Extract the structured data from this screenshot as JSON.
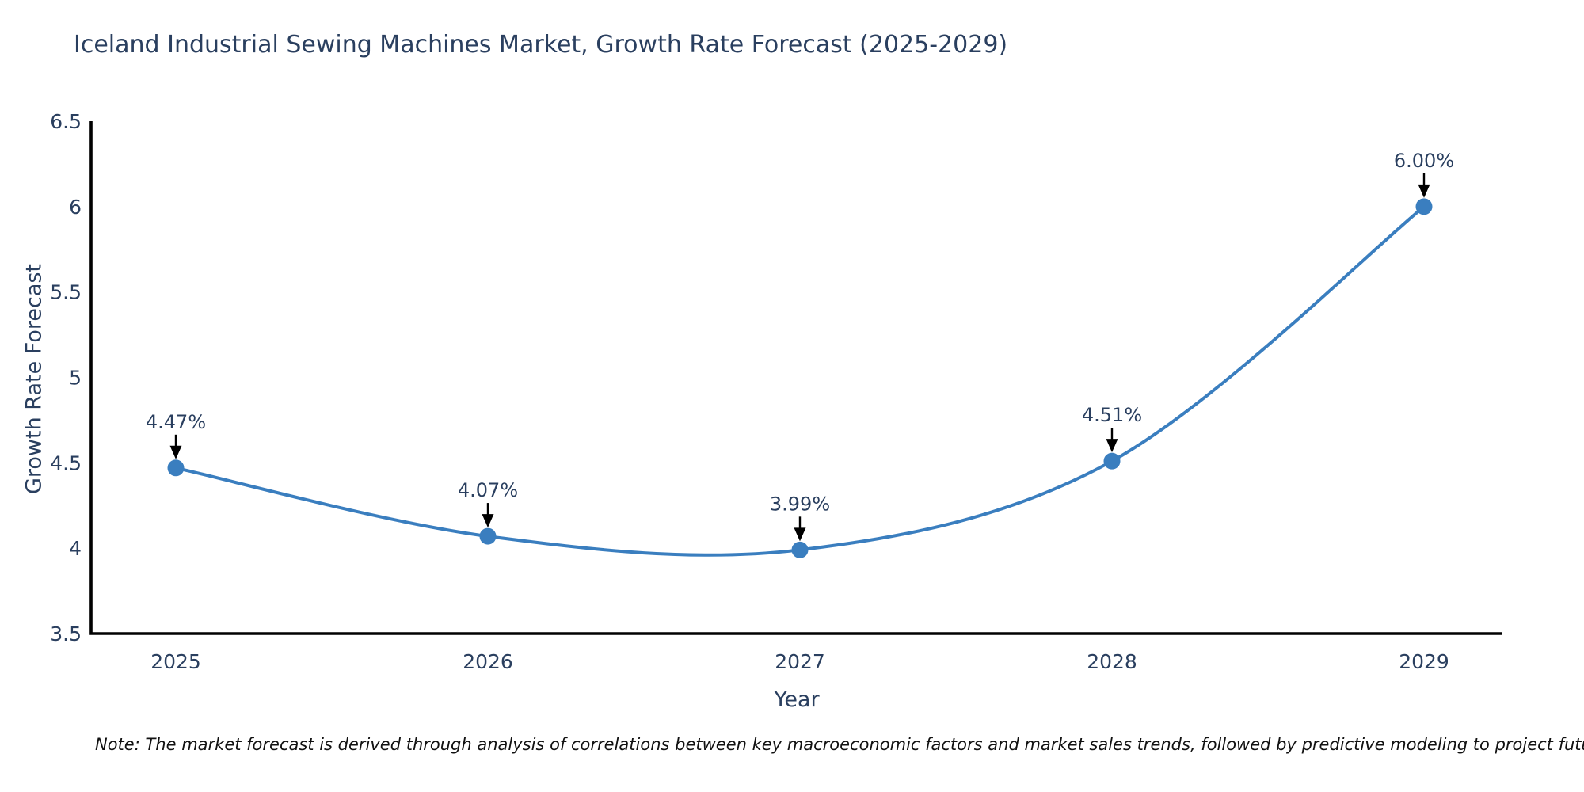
{
  "title": "Iceland Industrial Sewing Machines Market, Growth Rate Forecast (2025-2029)",
  "note": "Note: The market forecast is derived through analysis of correlations between key macroeconomic factors and market sales trends, followed by predictive modeling to project future sales",
  "colors": {
    "line": "#3a7ebf",
    "marker": "#3a7ebf",
    "axis": "#000000",
    "arrow": "#000000",
    "font": "#2a3f5f",
    "note_text": "#111111",
    "background": "#ffffff"
  },
  "chart_data": {
    "type": "line",
    "title": "Iceland Industrial Sewing Machines Market, Growth Rate Forecast (2025-2029)",
    "xlabel": "Year",
    "ylabel": "Growth Rate Forecast",
    "x": [
      2025,
      2026,
      2027,
      2028,
      2029
    ],
    "series": [
      {
        "name": "Growth Rate Forecast",
        "values": [
          4.47,
          4.07,
          3.99,
          4.51,
          6.0
        ],
        "point_labels": [
          "4.47%",
          "4.07%",
          "3.99%",
          "4.51%",
          "6.00%"
        ]
      }
    ],
    "ylim": [
      3.5,
      6.5
    ],
    "yticks": [
      3.5,
      4,
      4.5,
      5,
      5.5,
      6,
      6.5
    ],
    "xticks": [
      2025,
      2026,
      2027,
      2028,
      2029
    ],
    "line_shape": "spline",
    "grid": false,
    "legend_position": "none",
    "annotation_style": "value label above point with downward black arrow"
  }
}
